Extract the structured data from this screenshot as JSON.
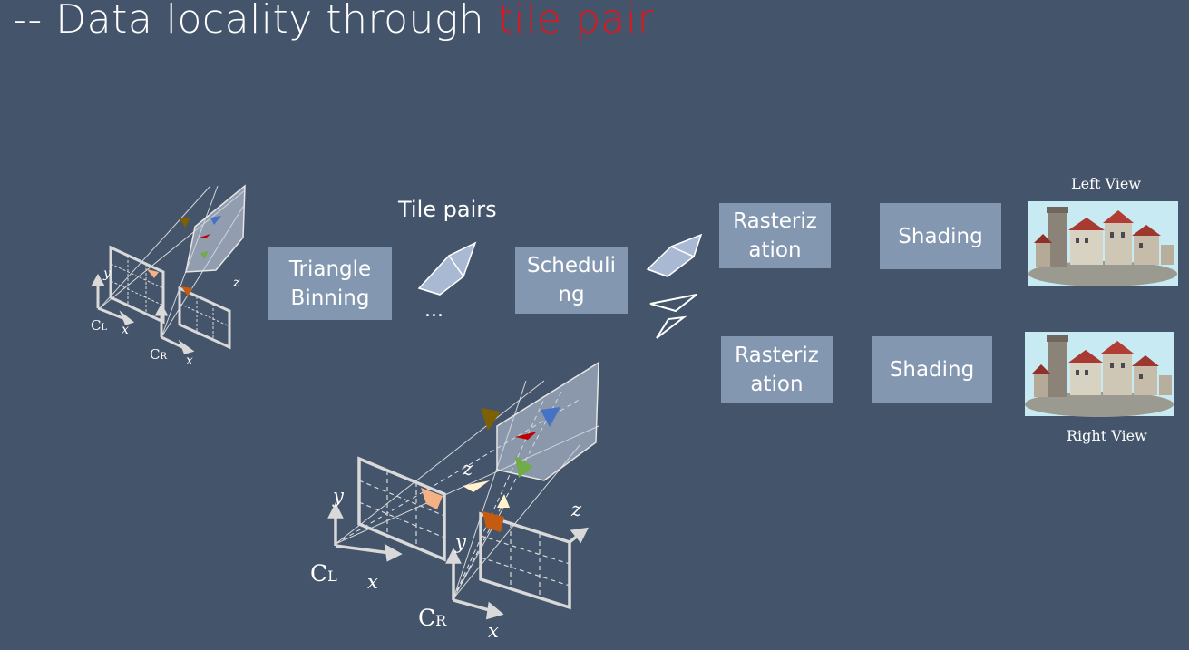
{
  "title": {
    "prefix": "-- Data locality through ",
    "highlight": "tile pair"
  },
  "tile_pairs_label": "Tile pairs",
  "ellipsis": "...",
  "boxes": {
    "triangle_binning": "Triangle\nBinning",
    "scheduling": "Scheduli\nng",
    "rasterization_top": "Rasteriz\nation",
    "shading_top": "Shading",
    "rasterization_bottom": "Rasteriz\nation",
    "shading_bottom": "Shading"
  },
  "views": {
    "left": "Left View",
    "right": "Right View"
  },
  "axes": {
    "x": "x",
    "y": "y",
    "z": "z",
    "cl_base": "C",
    "cl_sub": "L",
    "cr_base": "C",
    "cr_sub": "R"
  },
  "colors": {
    "background": "#44546a",
    "box": "#8497b0",
    "highlight": "#e3141b"
  }
}
